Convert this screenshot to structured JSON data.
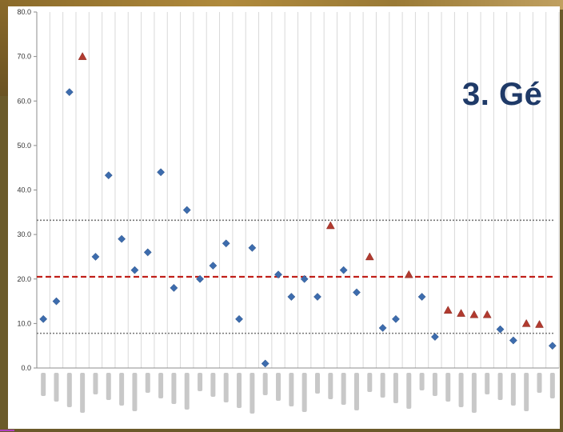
{
  "slide": {
    "heading": "3. Gé"
  },
  "chart_data": {
    "type": "scatter",
    "title": "",
    "xlabel": "",
    "ylabel": "",
    "ylim": [
      0,
      80
    ],
    "y_ticks": [
      "0.0",
      "10.0",
      "20.0",
      "30.0",
      "40.0",
      "50.0",
      "60.0",
      "70.0",
      "80.0"
    ],
    "grid": "vertical",
    "x_count": 40,
    "series": [
      {
        "marker": "diamond",
        "color": "#3d6cad",
        "points": [
          {
            "x": 1,
            "y": 11
          },
          {
            "x": 2,
            "y": 15
          },
          {
            "x": 3,
            "y": 62
          },
          {
            "x": 5,
            "y": 25
          },
          {
            "x": 6,
            "y": 43.3
          },
          {
            "x": 7,
            "y": 29
          },
          {
            "x": 8,
            "y": 22
          },
          {
            "x": 9,
            "y": 26
          },
          {
            "x": 10,
            "y": 44
          },
          {
            "x": 11,
            "y": 18
          },
          {
            "x": 12,
            "y": 35.5
          },
          {
            "x": 13,
            "y": 20
          },
          {
            "x": 14,
            "y": 23
          },
          {
            "x": 15,
            "y": 28
          },
          {
            "x": 16,
            "y": 11
          },
          {
            "x": 17,
            "y": 27
          },
          {
            "x": 18,
            "y": 1
          },
          {
            "x": 19,
            "y": 21
          },
          {
            "x": 20,
            "y": 16
          },
          {
            "x": 21,
            "y": 20
          },
          {
            "x": 22,
            "y": 16
          },
          {
            "x": 24,
            "y": 22
          },
          {
            "x": 25,
            "y": 17
          },
          {
            "x": 27,
            "y": 9
          },
          {
            "x": 28,
            "y": 11
          },
          {
            "x": 30,
            "y": 16
          },
          {
            "x": 31,
            "y": 7
          },
          {
            "x": 36,
            "y": 8.7
          },
          {
            "x": 37,
            "y": 6.2
          },
          {
            "x": 40,
            "y": 5
          }
        ]
      },
      {
        "marker": "triangle",
        "color": "#b13a2f",
        "points": [
          {
            "x": 4,
            "y": 70
          },
          {
            "x": 23,
            "y": 32
          },
          {
            "x": 26,
            "y": 25
          },
          {
            "x": 29,
            "y": 21
          },
          {
            "x": 32,
            "y": 13
          },
          {
            "x": 33,
            "y": 12.3
          },
          {
            "x": 34,
            "y": 12
          },
          {
            "x": 35,
            "y": 12
          },
          {
            "x": 38,
            "y": 10
          },
          {
            "x": 39,
            "y": 9.8
          }
        ]
      }
    ],
    "reference_lines": [
      {
        "y": 20.5,
        "style": "dashed",
        "color": "#c0201a"
      },
      {
        "y": 33.2,
        "style": "dotted",
        "color": "#777777"
      },
      {
        "y": 7.8,
        "style": "dotted",
        "color": "#777777"
      }
    ]
  }
}
